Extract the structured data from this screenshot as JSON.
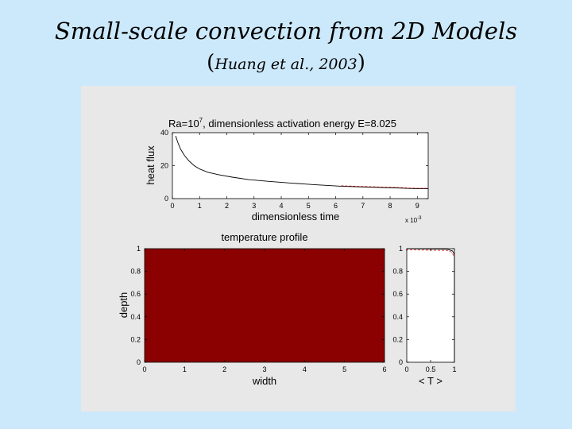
{
  "slide": {
    "title": "Small-scale convection from 2D Models",
    "citation_open": "(",
    "citation": "Huang et al., 2003",
    "citation_close": ")"
  },
  "colors": {
    "background": "#cce9fb",
    "panel": "#e8e8e8",
    "temperature_field": "#8b0000",
    "heat_flux_line": "#000000",
    "heat_flux_line_alt": "#cc0000"
  },
  "chart_data": [
    {
      "type": "line",
      "title_prefix": "Ra=10",
      "title_sup": "7",
      "title_suffix": ", dimensionless activation energy E=8.025",
      "xlabel": "dimensionless time",
      "ylabel": "heat flux",
      "x_multiplier_base": "x 10",
      "x_multiplier_exp": "-3",
      "xlim": [
        0,
        9.4
      ],
      "ylim": [
        0,
        40
      ],
      "xticks": [
        0,
        1,
        2,
        3,
        4,
        5,
        6,
        7,
        8,
        9
      ],
      "yticks": [
        0,
        20,
        40
      ],
      "series": [
        {
          "x": [
            0.12,
            0.2,
            0.3,
            0.45,
            0.6,
            0.8,
            1.0,
            1.3,
            1.7,
            2.2,
            2.8,
            3.5,
            4.3,
            5.2,
            6.2,
            7.2,
            8.2,
            9.0,
            9.4
          ],
          "y": [
            38,
            34,
            30,
            26,
            23,
            20,
            18,
            16,
            14.5,
            13,
            11.5,
            10.5,
            9.5,
            8.5,
            7.5,
            7,
            6.5,
            6,
            6
          ]
        }
      ]
    },
    {
      "type": "heatmap",
      "title": "temperature profile",
      "xlabel": "width",
      "ylabel": "depth",
      "xlim": [
        0,
        6
      ],
      "ylim": [
        0,
        1
      ],
      "xticks": [
        0,
        1,
        2,
        3,
        4,
        5,
        6
      ],
      "yticks": [
        0,
        0.2,
        0.4,
        0.6,
        0.8,
        1
      ]
    },
    {
      "type": "line",
      "xlabel": "< T >",
      "xlim": [
        0,
        1
      ],
      "ylim": [
        0,
        1
      ],
      "xticks": [
        0,
        0.5,
        1
      ],
      "yticks": [
        0,
        0.2,
        0.4,
        0.6,
        0.8,
        1
      ],
      "series": [
        {
          "x": [
            0,
            0.85,
            0.96,
            1,
            1,
            1
          ],
          "y": [
            1,
            0.995,
            0.98,
            0.95,
            0.5,
            0
          ]
        }
      ]
    }
  ]
}
